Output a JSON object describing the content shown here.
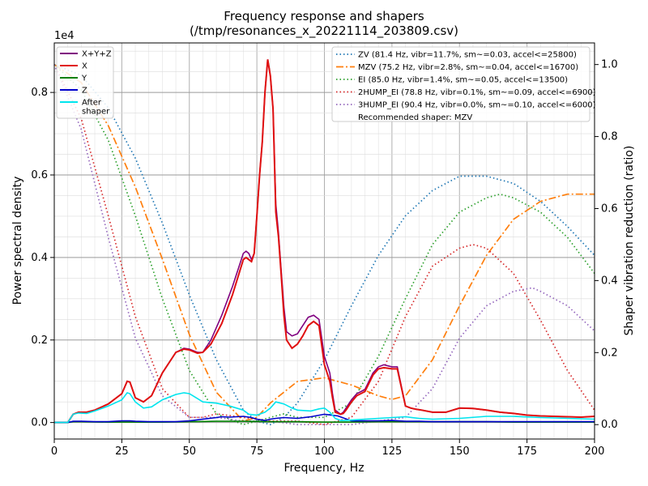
{
  "chart_data": {
    "type": "line",
    "title": "Frequency response and shapers",
    "subtitle": "(/tmp/resonances_x_20221114_203809.csv)",
    "xlabel": "Frequency, Hz",
    "ylabel": "Power spectral density",
    "y2label": "Shaper vibration reduction (ratio)",
    "y_exponent_label": "1e4",
    "xlim": [
      0,
      200
    ],
    "ylim": [
      -0.04,
      0.92
    ],
    "y2lim": [
      -0.04,
      1.06
    ],
    "y_scale_factor": 10000,
    "grid": true,
    "xticks": [
      0,
      25,
      50,
      75,
      100,
      125,
      150,
      175,
      200
    ],
    "xtick_labels": [
      "0",
      "25",
      "50",
      "75",
      "100",
      "125",
      "150",
      "175",
      "200"
    ],
    "yticks": [
      0.0,
      0.2,
      0.4,
      0.6,
      0.8
    ],
    "ytick_labels": [
      "0.0",
      "0.2",
      "0.4",
      "0.6",
      "0.8"
    ],
    "y2ticks": [
      0.0,
      0.2,
      0.4,
      0.6,
      0.8,
      1.0
    ],
    "y2tick_labels": [
      "0.0",
      "0.2",
      "0.4",
      "0.6",
      "0.8",
      "1.0"
    ],
    "legend_left_placement": "top-left",
    "legend_right_placement": "top-right",
    "psd_series": [
      {
        "name": "X+Y+Z",
        "color": "#800080",
        "x": [
          0,
          5,
          7,
          9,
          12,
          15,
          20,
          25,
          27,
          28,
          30,
          33,
          36,
          40,
          45,
          48,
          50,
          53,
          55,
          58,
          62,
          66,
          70,
          71,
          72,
          73,
          74,
          75,
          76,
          77,
          78,
          79,
          80,
          81,
          82,
          83,
          84,
          85,
          86,
          88,
          90,
          92,
          94,
          96,
          98,
          100,
          102,
          103,
          104,
          106,
          107,
          108,
          110,
          112,
          115,
          118,
          120,
          122,
          125,
          127,
          130,
          132,
          134,
          136,
          140,
          145,
          150,
          155,
          160,
          165,
          170,
          175,
          180,
          190,
          195,
          200
        ],
        "y": [
          0.0,
          0.0,
          0.02,
          0.025,
          0.025,
          0.03,
          0.045,
          0.07,
          0.1,
          0.098,
          0.06,
          0.05,
          0.065,
          0.12,
          0.17,
          0.18,
          0.178,
          0.17,
          0.17,
          0.2,
          0.26,
          0.33,
          0.41,
          0.415,
          0.41,
          0.395,
          0.41,
          0.5,
          0.6,
          0.68,
          0.8,
          0.88,
          0.84,
          0.76,
          0.53,
          0.46,
          0.37,
          0.28,
          0.22,
          0.21,
          0.215,
          0.235,
          0.255,
          0.26,
          0.25,
          0.16,
          0.12,
          0.07,
          0.03,
          0.02,
          0.025,
          0.035,
          0.055,
          0.07,
          0.08,
          0.12,
          0.135,
          0.14,
          0.135,
          0.135,
          0.04,
          0.035,
          0.032,
          0.03,
          0.025,
          0.025,
          0.035,
          0.034,
          0.03,
          0.025,
          0.022,
          0.018,
          0.016,
          0.014,
          0.013,
          0.015
        ]
      },
      {
        "name": "X",
        "color": "#e01010",
        "x": [
          0,
          5,
          7,
          9,
          12,
          15,
          20,
          25,
          27,
          28,
          30,
          33,
          36,
          40,
          45,
          48,
          50,
          53,
          55,
          58,
          62,
          66,
          70,
          71,
          72,
          73,
          74,
          75,
          76,
          77,
          78,
          79,
          80,
          81,
          82,
          83,
          84,
          85,
          86,
          88,
          90,
          92,
          94,
          96,
          98,
          100,
          102,
          103,
          104,
          106,
          107,
          108,
          110,
          112,
          115,
          118,
          120,
          122,
          125,
          127,
          130,
          132,
          134,
          136,
          140,
          145,
          150,
          155,
          160,
          165,
          170,
          175,
          180,
          190,
          195,
          200
        ],
        "y": [
          0.0,
          0.0,
          0.02,
          0.025,
          0.025,
          0.03,
          0.045,
          0.07,
          0.1,
          0.098,
          0.06,
          0.05,
          0.065,
          0.12,
          0.17,
          0.178,
          0.176,
          0.168,
          0.17,
          0.19,
          0.24,
          0.31,
          0.395,
          0.4,
          0.395,
          0.39,
          0.41,
          0.5,
          0.6,
          0.68,
          0.8,
          0.88,
          0.84,
          0.76,
          0.51,
          0.45,
          0.36,
          0.26,
          0.2,
          0.18,
          0.19,
          0.21,
          0.235,
          0.245,
          0.235,
          0.14,
          0.1,
          0.06,
          0.025,
          0.02,
          0.022,
          0.03,
          0.05,
          0.065,
          0.075,
          0.115,
          0.13,
          0.133,
          0.13,
          0.13,
          0.04,
          0.035,
          0.032,
          0.03,
          0.025,
          0.025,
          0.035,
          0.034,
          0.03,
          0.025,
          0.022,
          0.018,
          0.016,
          0.014,
          0.013,
          0.015
        ]
      },
      {
        "name": "Y",
        "color": "#008000",
        "x": [
          0,
          5,
          7,
          10,
          20,
          30,
          40,
          50,
          60,
          70,
          80,
          90,
          100,
          110,
          120,
          130,
          140,
          150,
          160,
          170,
          180,
          190,
          200
        ],
        "y": [
          0.0,
          0.0,
          0.002,
          0.002,
          0.001,
          0.001,
          0.001,
          0.002,
          0.003,
          0.003,
          0.002,
          0.002,
          0.001,
          0.001,
          0.002,
          0.002,
          0.002,
          0.002,
          0.002,
          0.001,
          0.001,
          0.001,
          0.001
        ]
      },
      {
        "name": "Z",
        "color": "#0000cc",
        "x": [
          0,
          5,
          7,
          10,
          15,
          20,
          25,
          28,
          30,
          35,
          40,
          45,
          50,
          55,
          60,
          62,
          65,
          70,
          73,
          75,
          78,
          80,
          82,
          85,
          90,
          95,
          100,
          105,
          110,
          115,
          120,
          125,
          130,
          135,
          140,
          150,
          160,
          170,
          180,
          190,
          200
        ],
        "y": [
          0.0,
          0.0,
          0.003,
          0.003,
          0.002,
          0.002,
          0.004,
          0.004,
          0.003,
          0.002,
          0.002,
          0.002,
          0.004,
          0.008,
          0.012,
          0.014,
          0.013,
          0.015,
          0.012,
          0.008,
          0.005,
          0.008,
          0.01,
          0.012,
          0.01,
          0.014,
          0.02,
          0.016,
          0.004,
          0.004,
          0.004,
          0.005,
          0.003,
          0.003,
          0.002,
          0.002,
          0.002,
          0.002,
          0.002,
          0.002,
          0.002
        ]
      },
      {
        "name": "After\nshaper",
        "color": "#00e5ee",
        "x": [
          0,
          5,
          7,
          9,
          12,
          15,
          20,
          25,
          27,
          28,
          30,
          33,
          36,
          40,
          45,
          48,
          50,
          53,
          55,
          60,
          65,
          70,
          72,
          75,
          78,
          80,
          82,
          85,
          88,
          90,
          95,
          98,
          100,
          102,
          104,
          106,
          108,
          110,
          115,
          120,
          125,
          130,
          135,
          140,
          150,
          160,
          170,
          180,
          190,
          200
        ],
        "y": [
          0.0,
          0.0,
          0.02,
          0.023,
          0.022,
          0.028,
          0.04,
          0.055,
          0.072,
          0.07,
          0.05,
          0.035,
          0.038,
          0.055,
          0.068,
          0.072,
          0.07,
          0.058,
          0.05,
          0.047,
          0.04,
          0.03,
          0.02,
          0.018,
          0.025,
          0.035,
          0.05,
          0.045,
          0.035,
          0.03,
          0.028,
          0.033,
          0.035,
          0.025,
          0.01,
          0.005,
          0.005,
          0.006,
          0.008,
          0.01,
          0.012,
          0.014,
          0.01,
          0.008,
          0.01,
          0.015,
          0.015,
          0.012,
          0.01,
          0.008
        ]
      }
    ],
    "shaper_series": [
      {
        "name": "ZV (81.4 Hz, vibr=11.7%, sm~=0.03, accel<=25800)",
        "color": "#1f77b4",
        "dash": "dotted",
        "x": [
          0,
          10,
          20,
          30,
          40,
          50,
          60,
          70,
          75,
          80,
          85,
          90,
          100,
          110,
          120,
          130,
          140,
          150,
          160,
          170,
          180,
          190,
          200
        ],
        "y": [
          1.0,
          0.97,
          0.88,
          0.74,
          0.56,
          0.36,
          0.18,
          0.04,
          0.01,
          0.0,
          0.02,
          0.06,
          0.18,
          0.33,
          0.47,
          0.58,
          0.65,
          0.69,
          0.69,
          0.67,
          0.62,
          0.55,
          0.47
        ]
      },
      {
        "name": "MZV (75.2 Hz, vibr=2.8%, sm~=0.04, accel<=16700)",
        "color": "#ff7f0e",
        "dash": "dashdot",
        "x": [
          0,
          10,
          20,
          30,
          40,
          50,
          60,
          70,
          75,
          80,
          90,
          100,
          110,
          120,
          125,
          130,
          140,
          150,
          160,
          170,
          180,
          190,
          200
        ],
        "y": [
          1.0,
          0.95,
          0.83,
          0.66,
          0.46,
          0.25,
          0.09,
          0.01,
          0.02,
          0.06,
          0.12,
          0.13,
          0.11,
          0.08,
          0.07,
          0.08,
          0.18,
          0.33,
          0.47,
          0.57,
          0.62,
          0.64,
          0.64
        ]
      },
      {
        "name": "EI (85.0 Hz, vibr=1.4%, sm~=0.05, accel<=13500)",
        "color": "#2ca02c",
        "dash": "dotted",
        "x": [
          0,
          10,
          20,
          30,
          40,
          50,
          60,
          70,
          75,
          80,
          85,
          90,
          100,
          110,
          120,
          130,
          140,
          150,
          160,
          165,
          170,
          180,
          190,
          200
        ],
        "y": [
          1.0,
          0.93,
          0.79,
          0.58,
          0.35,
          0.15,
          0.03,
          0.0,
          0.01,
          0.02,
          0.03,
          0.02,
          0.02,
          0.06,
          0.19,
          0.35,
          0.5,
          0.59,
          0.63,
          0.64,
          0.63,
          0.59,
          0.52,
          0.42
        ]
      },
      {
        "name": "2HUMP_EI (78.8 Hz, vibr=0.1%, sm~=0.09, accel<=6900)",
        "color": "#d62728",
        "dash": "dotted",
        "x": [
          0,
          10,
          20,
          30,
          40,
          50,
          55,
          60,
          70,
          80,
          90,
          100,
          110,
          120,
          130,
          140,
          150,
          155,
          160,
          170,
          180,
          190,
          200
        ],
        "y": [
          1.0,
          0.85,
          0.58,
          0.3,
          0.1,
          0.02,
          0.02,
          0.03,
          0.02,
          0.01,
          0.01,
          0.0,
          0.02,
          0.12,
          0.3,
          0.44,
          0.49,
          0.5,
          0.49,
          0.42,
          0.29,
          0.15,
          0.04
        ]
      },
      {
        "name": "3HUMP_EI (90.4 Hz, vibr=0.0%, sm~=0.10, accel<=6000)",
        "color": "#9467bd",
        "dash": "dotted",
        "x": [
          0,
          10,
          20,
          30,
          40,
          50,
          60,
          70,
          80,
          90,
          100,
          110,
          120,
          130,
          140,
          150,
          160,
          170,
          177,
          180,
          190,
          200
        ],
        "y": [
          1.0,
          0.82,
          0.52,
          0.24,
          0.08,
          0.02,
          0.02,
          0.01,
          0.01,
          0.0,
          0.0,
          0.0,
          0.01,
          0.02,
          0.1,
          0.24,
          0.33,
          0.37,
          0.38,
          0.37,
          0.33,
          0.26
        ]
      }
    ],
    "recommended_text": "Recommended shaper: MZV"
  }
}
